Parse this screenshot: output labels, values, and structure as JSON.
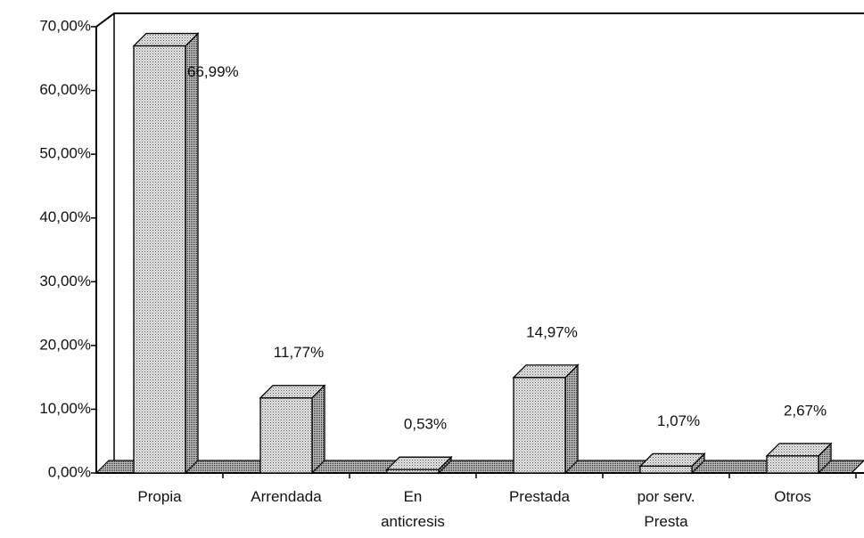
{
  "chart_data": {
    "type": "bar3d",
    "categories": [
      "Propia",
      "Arrendada",
      "En\nanticresis",
      "Prestada",
      "por serv.\nPresta",
      "Otros"
    ],
    "values": [
      66.99,
      11.77,
      0.53,
      14.97,
      1.07,
      2.67
    ],
    "value_labels": [
      "66,99%",
      "11,77%",
      "0,53%",
      "14,97%",
      "1,07%",
      "2,67%"
    ],
    "color": "#c8c8c8",
    "ylim": [
      0,
      70
    ],
    "yticks": [
      {
        "value": 0,
        "label": "0,00%"
      },
      {
        "value": 10,
        "label": "10,00%"
      },
      {
        "value": 20,
        "label": "20,00%"
      },
      {
        "value": 30,
        "label": "30,00%"
      },
      {
        "value": 40,
        "label": "40,00%"
      },
      {
        "value": 50,
        "label": "50,00%"
      },
      {
        "value": 60,
        "label": "60,00%"
      },
      {
        "value": 70,
        "label": "70,00%"
      }
    ]
  }
}
